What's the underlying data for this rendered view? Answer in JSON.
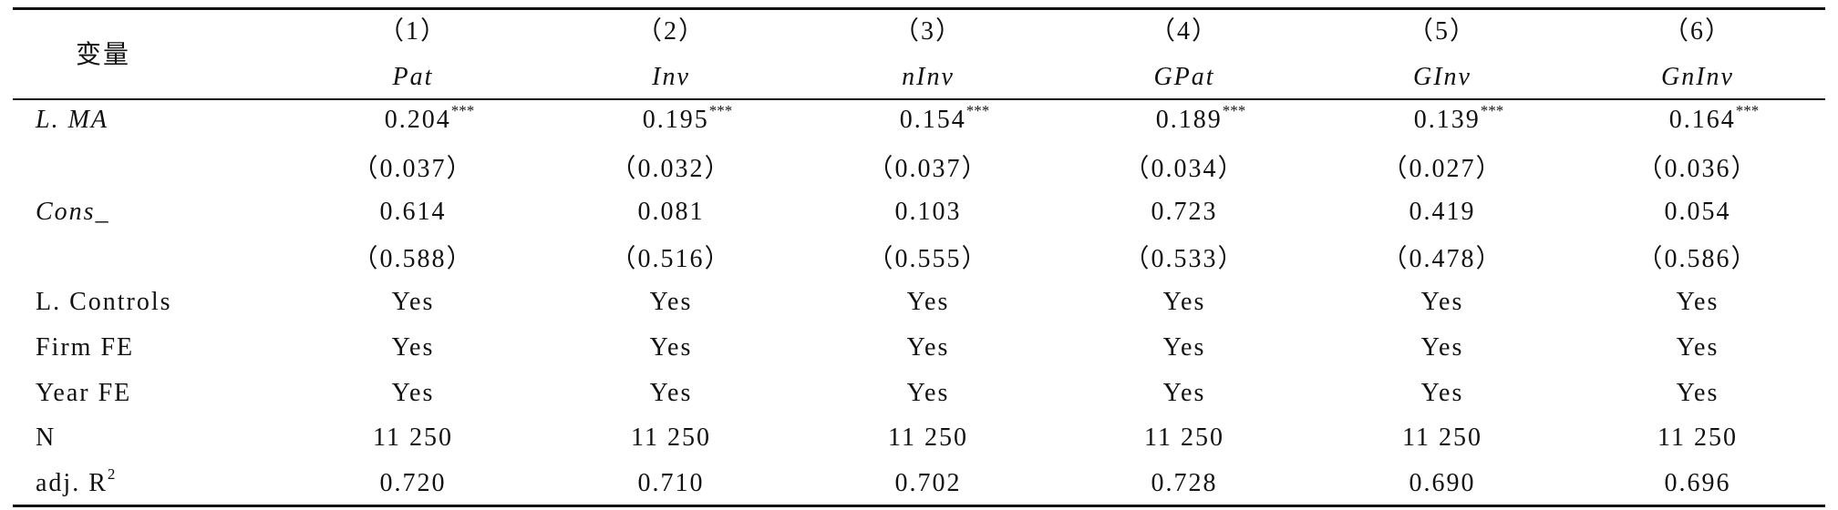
{
  "header": {
    "variable": "变量",
    "columns": [
      {
        "number": "（1）",
        "name": "Pat"
      },
      {
        "number": "（2）",
        "name": "Inv"
      },
      {
        "number": "（3）",
        "name": "nInv"
      },
      {
        "number": "（4）",
        "name": "GPat"
      },
      {
        "number": "（5）",
        "name": "GInv"
      },
      {
        "number": "（6）",
        "name": "GnInv"
      }
    ]
  },
  "rows": [
    {
      "label": "L. MA",
      "italic": true,
      "cells": [
        "0.204",
        "0.195",
        "0.154",
        "0.189",
        "0.139",
        "0.164"
      ],
      "stars": [
        "***",
        "***",
        "***",
        "***",
        "***",
        "***"
      ]
    },
    {
      "cells": [
        "（0.037）",
        "（0.032）",
        "（0.037）",
        "（0.034）",
        "（0.027）",
        "（0.036）"
      ]
    },
    {
      "label": "Cons_",
      "italic": true,
      "cells": [
        "0.614",
        "0.081",
        "0.103",
        "0.723",
        "0.419",
        "0.054"
      ]
    },
    {
      "cells": [
        "（0.588）",
        "（0.516）",
        "（0.555）",
        "（0.533）",
        "（0.478）",
        "（0.586）"
      ]
    },
    {
      "label": "L. Controls",
      "cells": [
        "Yes",
        "Yes",
        "Yes",
        "Yes",
        "Yes",
        "Yes"
      ]
    },
    {
      "label": "Firm FE",
      "cells": [
        "Yes",
        "Yes",
        "Yes",
        "Yes",
        "Yes",
        "Yes"
      ]
    },
    {
      "label": "Year FE",
      "cells": [
        "Yes",
        "Yes",
        "Yes",
        "Yes",
        "Yes",
        "Yes"
      ]
    },
    {
      "label": "N",
      "cells": [
        "11 250",
        "11 250",
        "11 250",
        "11 250",
        "11 250",
        "11 250"
      ]
    },
    {
      "label": "adj. R",
      "label_sup": "2",
      "cells": [
        "0.720",
        "0.710",
        "0.702",
        "0.728",
        "0.690",
        "0.696"
      ]
    }
  ]
}
